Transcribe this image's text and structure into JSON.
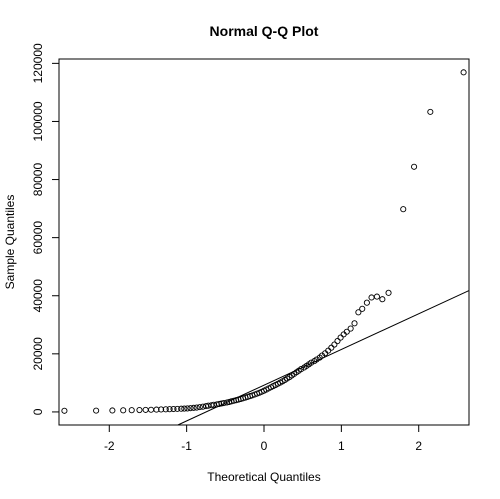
{
  "chart_data": {
    "type": "scatter",
    "title": "Normal Q-Q Plot",
    "xlabel": "Theoretical Quantiles",
    "ylabel": "Sample Quantiles",
    "xlim": [
      -2.65,
      2.65
    ],
    "ylim": [
      -4500,
      121500
    ],
    "x_ticks": [
      -2,
      -1,
      0,
      1,
      2
    ],
    "x_tick_labels": [
      "-2",
      "-1",
      "0",
      "1",
      "2"
    ],
    "y_ticks": [
      0,
      20000,
      40000,
      60000,
      80000,
      100000,
      120000
    ],
    "y_tick_labels": [
      "0",
      "20000",
      "40000",
      "60000",
      "80000",
      "100000",
      "120000"
    ],
    "grid": false,
    "legend": "none",
    "qq_line": {
      "intercept": 9200,
      "slope": 12300
    },
    "points": [
      {
        "x": -2.58,
        "y": 400
      },
      {
        "x": -2.17,
        "y": 450
      },
      {
        "x": -1.96,
        "y": 500
      },
      {
        "x": -1.82,
        "y": 550
      },
      {
        "x": -1.71,
        "y": 600
      },
      {
        "x": -1.61,
        "y": 650
      },
      {
        "x": -1.53,
        "y": 700
      },
      {
        "x": -1.46,
        "y": 750
      },
      {
        "x": -1.39,
        "y": 800
      },
      {
        "x": -1.33,
        "y": 850
      },
      {
        "x": -1.27,
        "y": 900
      },
      {
        "x": -1.22,
        "y": 950
      },
      {
        "x": -1.17,
        "y": 1000
      },
      {
        "x": -1.12,
        "y": 1050
      },
      {
        "x": -1.07,
        "y": 1100
      },
      {
        "x": -1.03,
        "y": 1150
      },
      {
        "x": -0.99,
        "y": 1200
      },
      {
        "x": -0.95,
        "y": 1300
      },
      {
        "x": -0.91,
        "y": 1400
      },
      {
        "x": -0.87,
        "y": 1500
      },
      {
        "x": -0.83,
        "y": 1650
      },
      {
        "x": -0.79,
        "y": 1800
      },
      {
        "x": -0.75,
        "y": 2000
      },
      {
        "x": -0.72,
        "y": 2150
      },
      {
        "x": -0.68,
        "y": 2300
      },
      {
        "x": -0.65,
        "y": 2450
      },
      {
        "x": -0.61,
        "y": 2600
      },
      {
        "x": -0.58,
        "y": 2750
      },
      {
        "x": -0.55,
        "y": 2900
      },
      {
        "x": -0.52,
        "y": 3050
      },
      {
        "x": -0.48,
        "y": 3250
      },
      {
        "x": -0.45,
        "y": 3450
      },
      {
        "x": -0.42,
        "y": 3650
      },
      {
        "x": -0.39,
        "y": 3850
      },
      {
        "x": -0.36,
        "y": 4050
      },
      {
        "x": -0.33,
        "y": 4250
      },
      {
        "x": -0.3,
        "y": 4450
      },
      {
        "x": -0.27,
        "y": 4700
      },
      {
        "x": -0.24,
        "y": 4950
      },
      {
        "x": -0.21,
        "y": 5200
      },
      {
        "x": -0.18,
        "y": 5450
      },
      {
        "x": -0.15,
        "y": 5700
      },
      {
        "x": -0.12,
        "y": 6000
      },
      {
        "x": -0.09,
        "y": 6300
      },
      {
        "x": -0.06,
        "y": 6600
      },
      {
        "x": -0.03,
        "y": 6950
      },
      {
        "x": 0.0,
        "y": 7300
      },
      {
        "x": 0.03,
        "y": 7700
      },
      {
        "x": 0.06,
        "y": 8100
      },
      {
        "x": 0.09,
        "y": 8500
      },
      {
        "x": 0.12,
        "y": 8900
      },
      {
        "x": 0.15,
        "y": 9300
      },
      {
        "x": 0.18,
        "y": 9700
      },
      {
        "x": 0.21,
        "y": 10100
      },
      {
        "x": 0.24,
        "y": 10550
      },
      {
        "x": 0.27,
        "y": 11000
      },
      {
        "x": 0.3,
        "y": 11500
      },
      {
        "x": 0.33,
        "y": 12000
      },
      {
        "x": 0.36,
        "y": 12550
      },
      {
        "x": 0.39,
        "y": 13100
      },
      {
        "x": 0.42,
        "y": 13650
      },
      {
        "x": 0.45,
        "y": 14200
      },
      {
        "x": 0.48,
        "y": 14750
      },
      {
        "x": 0.52,
        "y": 15300
      },
      {
        "x": 0.55,
        "y": 15850
      },
      {
        "x": 0.58,
        "y": 16400
      },
      {
        "x": 0.61,
        "y": 16950
      },
      {
        "x": 0.65,
        "y": 17500
      },
      {
        "x": 0.68,
        "y": 18050
      },
      {
        "x": 0.72,
        "y": 18700
      },
      {
        "x": 0.75,
        "y": 19400
      },
      {
        "x": 0.79,
        "y": 20200
      },
      {
        "x": 0.83,
        "y": 21100
      },
      {
        "x": 0.87,
        "y": 22100
      },
      {
        "x": 0.91,
        "y": 23200
      },
      {
        "x": 0.95,
        "y": 24400
      },
      {
        "x": 0.99,
        "y": 25600
      },
      {
        "x": 1.03,
        "y": 26700
      },
      {
        "x": 1.07,
        "y": 27600
      },
      {
        "x": 1.12,
        "y": 28700
      },
      {
        "x": 1.17,
        "y": 30500
      },
      {
        "x": 1.22,
        "y": 34300
      },
      {
        "x": 1.27,
        "y": 35500
      },
      {
        "x": 1.33,
        "y": 37600
      },
      {
        "x": 1.39,
        "y": 39400
      },
      {
        "x": 1.46,
        "y": 39700
      },
      {
        "x": 1.53,
        "y": 38800
      },
      {
        "x": 1.61,
        "y": 41000
      },
      {
        "x": 1.8,
        "y": 69800
      },
      {
        "x": 1.94,
        "y": 84400
      },
      {
        "x": 2.15,
        "y": 103300
      },
      {
        "x": 2.58,
        "y": 116900
      }
    ]
  }
}
